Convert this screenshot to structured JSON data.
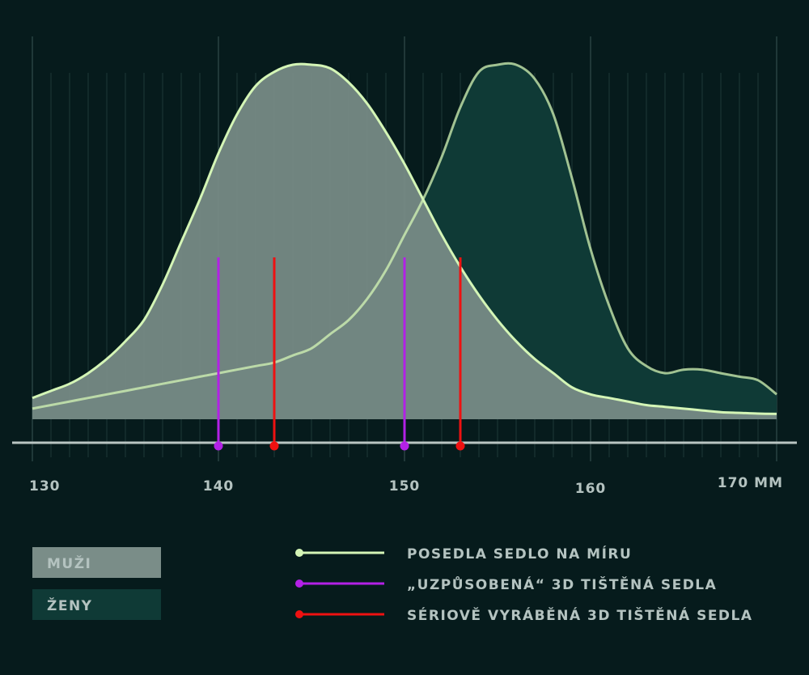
{
  "chart_data": {
    "type": "area",
    "x_unit": "MM",
    "xlim": [
      130,
      170
    ],
    "x_ticks": [
      {
        "value": 130,
        "label": "130"
      },
      {
        "value": 140,
        "label": "140"
      },
      {
        "value": 150,
        "label": "150"
      },
      {
        "value": 160,
        "label": "160"
      },
      {
        "value": 170,
        "label": "170 MM"
      }
    ],
    "series": [
      {
        "name": "MUŽI",
        "color": "#7a8d88",
        "x": [
          130,
          131,
          132,
          133,
          134,
          135,
          136,
          137,
          138,
          139,
          140,
          141,
          142,
          143,
          144,
          145,
          146,
          147,
          148,
          149,
          150,
          151,
          152,
          153,
          154,
          155,
          156,
          157,
          158,
          159,
          160,
          161,
          162,
          163,
          164,
          165,
          166,
          167,
          168,
          169,
          170
        ],
        "y": [
          0.06,
          0.08,
          0.1,
          0.13,
          0.17,
          0.22,
          0.28,
          0.38,
          0.5,
          0.62,
          0.75,
          0.86,
          0.94,
          0.98,
          1.0,
          1.0,
          0.99,
          0.95,
          0.89,
          0.81,
          0.72,
          0.62,
          0.52,
          0.43,
          0.35,
          0.28,
          0.22,
          0.17,
          0.13,
          0.09,
          0.07,
          0.06,
          0.05,
          0.04,
          0.035,
          0.03,
          0.025,
          0.02,
          0.018,
          0.016,
          0.015
        ]
      },
      {
        "name": "ŽENY",
        "color": "#0f3a36",
        "x": [
          130,
          131,
          132,
          133,
          134,
          135,
          136,
          137,
          138,
          139,
          140,
          141,
          142,
          143,
          144,
          145,
          146,
          147,
          148,
          149,
          150,
          151,
          152,
          153,
          154,
          155,
          156,
          157,
          158,
          159,
          160,
          161,
          162,
          163,
          164,
          165,
          166,
          167,
          168,
          169,
          170
        ],
        "y": [
          0.03,
          0.04,
          0.05,
          0.06,
          0.07,
          0.08,
          0.09,
          0.1,
          0.11,
          0.12,
          0.13,
          0.14,
          0.15,
          0.16,
          0.18,
          0.2,
          0.24,
          0.28,
          0.34,
          0.42,
          0.52,
          0.62,
          0.74,
          0.88,
          0.98,
          1.0,
          1.0,
          0.96,
          0.86,
          0.68,
          0.48,
          0.32,
          0.2,
          0.15,
          0.13,
          0.14,
          0.14,
          0.13,
          0.12,
          0.11,
          0.07
        ]
      }
    ],
    "markers": [
      {
        "x": 140,
        "series": "„UZPŮSOBENÁ“ 3D TIŠTĚNÁ SEDLA",
        "color": "#b321e6"
      },
      {
        "x": 143,
        "series": "SÉRIOVĚ VYRÁBĚNÁ 3D TIŠTĚNÁ SEDLA",
        "color": "#ee1111"
      },
      {
        "x": 150,
        "series": "„UZPŮSOBENÁ“ 3D TIŠTĚNÁ SEDLA",
        "color": "#b321e6"
      },
      {
        "x": 153,
        "series": "SÉRIOVĚ VYRÁBĚNÁ 3D TIŠTĚNÁ SEDLA",
        "color": "#ee1111"
      }
    ],
    "outline_color": "#d4f5b6",
    "grid": true,
    "legend": {
      "fills": [
        {
          "label": "MUŽI",
          "color": "#7a8d88"
        },
        {
          "label": "ŽENY",
          "color": "#0f3a36"
        }
      ],
      "lines": [
        {
          "label": "POSEDLA SEDLO NA MÍRU",
          "color": "#d4f5b6"
        },
        {
          "label": "„UZPŮSOBENÁ“ 3D TIŠTĚNÁ SEDLA",
          "color": "#b321e6"
        },
        {
          "label": "SÉRIOVĚ VYRÁBĚNÁ 3D TIŠTĚNÁ SEDLA",
          "color": "#ee1111"
        }
      ]
    }
  }
}
